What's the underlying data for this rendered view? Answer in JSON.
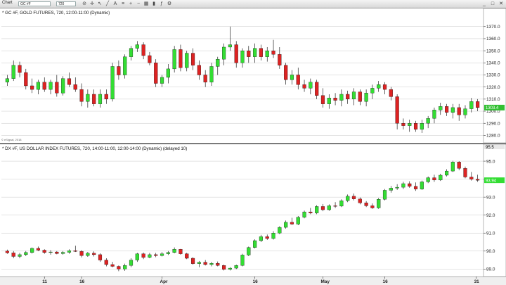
{
  "toolbar": {
    "app_label": "Chart",
    "symbol": "GC #F",
    "interval": "720"
  },
  "colors": {
    "up": "#33dd33",
    "down": "#dd2222",
    "wick": "#000000",
    "grid": "#c8c8c8",
    "last_gc": "#33c033",
    "last_dx": "#33dd33"
  },
  "chart_data": [
    {
      "type": "candlestick",
      "title": "* GC #F, GOLD FUTURES, 720, 12:00-11:00 (Dynamic)",
      "ylim": [
        1275,
        1378
      ],
      "yticks": [
        1280.0,
        1290.0,
        1300.0,
        1310.0,
        1320.0,
        1330.0,
        1340.0,
        1350.0,
        1360.0,
        1370.0
      ],
      "last_value": "1303.4",
      "credit": "© eSignal, 2018",
      "x_labels": [],
      "candles": [
        [
          1324,
          1330,
          1321,
          1327
        ],
        [
          1327,
          1342,
          1325,
          1338
        ],
        [
          1338,
          1341,
          1328,
          1332
        ],
        [
          1332,
          1335,
          1318,
          1321
        ],
        [
          1321,
          1327,
          1315,
          1318
        ],
        [
          1318,
          1326,
          1314,
          1324
        ],
        [
          1324,
          1328,
          1316,
          1318
        ],
        [
          1318,
          1326,
          1314,
          1324
        ],
        [
          1324,
          1330,
          1312,
          1315
        ],
        [
          1315,
          1329,
          1313,
          1327
        ],
        [
          1327,
          1332,
          1320,
          1322
        ],
        [
          1322,
          1328,
          1316,
          1318
        ],
        [
          1318,
          1323,
          1304,
          1308
        ],
        [
          1308,
          1318,
          1303,
          1314
        ],
        [
          1314,
          1318,
          1304,
          1306
        ],
        [
          1306,
          1318,
          1303,
          1314
        ],
        [
          1314,
          1318,
          1306,
          1310
        ],
        [
          1310,
          1340,
          1308,
          1337
        ],
        [
          1337,
          1342,
          1326,
          1330
        ],
        [
          1330,
          1347,
          1327,
          1345
        ],
        [
          1345,
          1354,
          1342,
          1352
        ],
        [
          1352,
          1358,
          1349,
          1355
        ],
        [
          1355,
          1357,
          1343,
          1346
        ],
        [
          1346,
          1349,
          1338,
          1340
        ],
        [
          1340,
          1343,
          1320,
          1323
        ],
        [
          1323,
          1330,
          1320,
          1328
        ],
        [
          1328,
          1339,
          1323,
          1335
        ],
        [
          1335,
          1354,
          1332,
          1351
        ],
        [
          1351,
          1355,
          1333,
          1336
        ],
        [
          1336,
          1350,
          1333,
          1348
        ],
        [
          1348,
          1352,
          1334,
          1338
        ],
        [
          1338,
          1342,
          1326,
          1330
        ],
        [
          1330,
          1334,
          1320,
          1324
        ],
        [
          1324,
          1340,
          1321,
          1337
        ],
        [
          1337,
          1345,
          1330,
          1343
        ],
        [
          1343,
          1356,
          1338,
          1353
        ],
        [
          1353,
          1370,
          1350,
          1355
        ],
        [
          1355,
          1358,
          1336,
          1340
        ],
        [
          1340,
          1352,
          1336,
          1350
        ],
        [
          1350,
          1354,
          1340,
          1345
        ],
        [
          1345,
          1356,
          1340,
          1352
        ],
        [
          1352,
          1355,
          1342,
          1345
        ],
        [
          1345,
          1353,
          1341,
          1350
        ],
        [
          1350,
          1359,
          1344,
          1347
        ],
        [
          1347,
          1353,
          1335,
          1338
        ],
        [
          1338,
          1340,
          1322,
          1326
        ],
        [
          1326,
          1334,
          1322,
          1330
        ],
        [
          1330,
          1336,
          1318,
          1322
        ],
        [
          1322,
          1326,
          1316,
          1319
        ],
        [
          1319,
          1327,
          1314,
          1324
        ],
        [
          1324,
          1326,
          1310,
          1313
        ],
        [
          1313,
          1319,
          1303,
          1306
        ],
        [
          1306,
          1314,
          1302,
          1311
        ],
        [
          1311,
          1315,
          1305,
          1309
        ],
        [
          1309,
          1318,
          1304,
          1314
        ],
        [
          1314,
          1317,
          1306,
          1310
        ],
        [
          1310,
          1319,
          1305,
          1316
        ],
        [
          1316,
          1318,
          1305,
          1308
        ],
        [
          1308,
          1318,
          1304,
          1315
        ],
        [
          1315,
          1322,
          1310,
          1319
        ],
        [
          1319,
          1325,
          1316,
          1322
        ],
        [
          1322,
          1324,
          1314,
          1318
        ],
        [
          1318,
          1320,
          1309,
          1312
        ],
        [
          1312,
          1314,
          1285,
          1290
        ],
        [
          1290,
          1294,
          1285,
          1288
        ],
        [
          1288,
          1293,
          1283,
          1290
        ],
        [
          1290,
          1292,
          1283,
          1285
        ],
        [
          1285,
          1293,
          1282,
          1290
        ],
        [
          1290,
          1296,
          1286,
          1294
        ],
        [
          1294,
          1303,
          1290,
          1301
        ],
        [
          1301,
          1307,
          1297,
          1304
        ],
        [
          1304,
          1306,
          1296,
          1299
        ],
        [
          1299,
          1306,
          1294,
          1303
        ],
        [
          1303,
          1306,
          1292,
          1297
        ],
        [
          1297,
          1305,
          1294,
          1302
        ],
        [
          1302,
          1311,
          1299,
          1308
        ],
        [
          1308,
          1310,
          1300,
          1303
        ]
      ]
    },
    {
      "type": "candlestick",
      "title": "* DX #F, US DOLLAR INDEX FUTURES, 720, 14:00-11:00, 12:00-14:00 (Dynamic) (delayed 10)",
      "ylim": [
        88.7,
        95.55
      ],
      "yticks": [
        89.0,
        90.0,
        91.0,
        92.0,
        93.0,
        94.0,
        95.0
      ],
      "last_value": "93.94",
      "top_value": "95.5",
      "x_labels": [
        "11",
        "16",
        "Apr",
        "16",
        "May",
        "16",
        "31"
      ],
      "candles": [
        [
          90.0,
          90.08,
          89.85,
          89.9
        ],
        [
          89.9,
          90.0,
          89.6,
          89.7
        ],
        [
          89.7,
          89.9,
          89.6,
          89.8
        ],
        [
          89.8,
          90.0,
          89.72,
          89.92
        ],
        [
          89.92,
          90.2,
          89.86,
          90.15
        ],
        [
          90.15,
          90.25,
          90.0,
          90.05
        ],
        [
          90.05,
          90.1,
          89.85,
          89.92
        ],
        [
          89.92,
          90.05,
          89.8,
          89.95
        ],
        [
          89.95,
          90.0,
          89.82,
          89.86
        ],
        [
          89.86,
          90.0,
          89.8,
          89.93
        ],
        [
          89.93,
          90.1,
          89.85,
          90.02
        ],
        [
          90.02,
          90.3,
          89.95,
          89.98
        ],
        [
          89.98,
          90.05,
          89.65,
          89.75
        ],
        [
          89.75,
          89.95,
          89.68,
          89.88
        ],
        [
          89.88,
          89.98,
          89.7,
          89.8
        ],
        [
          89.8,
          89.88,
          89.4,
          89.5
        ],
        [
          89.5,
          89.6,
          89.15,
          89.25
        ],
        [
          89.25,
          89.4,
          89.1,
          89.15
        ],
        [
          89.15,
          89.2,
          88.88,
          89.0
        ],
        [
          89.0,
          89.3,
          88.9,
          89.2
        ],
        [
          89.2,
          89.6,
          89.1,
          89.5
        ],
        [
          89.5,
          89.9,
          89.4,
          89.85
        ],
        [
          89.85,
          89.92,
          89.55,
          89.65
        ],
        [
          89.65,
          89.9,
          89.6,
          89.8
        ],
        [
          89.8,
          89.9,
          89.66,
          89.75
        ],
        [
          89.75,
          89.95,
          89.7,
          89.85
        ],
        [
          89.85,
          90.0,
          89.78,
          89.92
        ],
        [
          89.92,
          90.2,
          89.88,
          90.1
        ],
        [
          90.1,
          90.12,
          89.8,
          89.85
        ],
        [
          89.85,
          89.9,
          89.55,
          89.6
        ],
        [
          89.6,
          89.66,
          89.25,
          89.3
        ],
        [
          89.3,
          89.45,
          89.1,
          89.38
        ],
        [
          89.38,
          89.5,
          89.2,
          89.25
        ],
        [
          89.25,
          89.4,
          89.15,
          89.32
        ],
        [
          89.32,
          89.42,
          89.15,
          89.2
        ],
        [
          89.2,
          89.25,
          88.92,
          88.98
        ],
        [
          88.98,
          89.1,
          88.92,
          89.05
        ],
        [
          89.05,
          89.25,
          89.0,
          89.2
        ],
        [
          89.2,
          89.85,
          89.15,
          89.78
        ],
        [
          89.78,
          90.25,
          89.72,
          90.2
        ],
        [
          90.2,
          90.65,
          90.15,
          90.58
        ],
        [
          90.58,
          90.9,
          90.5,
          90.8
        ],
        [
          90.8,
          90.92,
          90.62,
          90.7
        ],
        [
          90.7,
          91.1,
          90.64,
          91.0
        ],
        [
          91.0,
          91.38,
          90.95,
          91.32
        ],
        [
          91.32,
          91.7,
          91.25,
          91.6
        ],
        [
          91.6,
          91.85,
          91.45,
          91.5
        ],
        [
          91.5,
          91.95,
          91.44,
          91.88
        ],
        [
          91.88,
          92.25,
          91.82,
          92.18
        ],
        [
          92.18,
          92.4,
          92.05,
          92.12
        ],
        [
          92.12,
          92.55,
          92.05,
          92.48
        ],
        [
          92.48,
          92.62,
          92.22,
          92.3
        ],
        [
          92.3,
          92.6,
          92.24,
          92.52
        ],
        [
          92.52,
          92.72,
          92.4,
          92.5
        ],
        [
          92.5,
          92.88,
          92.45,
          92.8
        ],
        [
          92.8,
          93.15,
          92.72,
          93.05
        ],
        [
          93.05,
          93.2,
          92.82,
          92.9
        ],
        [
          92.9,
          92.98,
          92.6,
          92.68
        ],
        [
          92.68,
          92.78,
          92.45,
          92.52
        ],
        [
          92.52,
          92.65,
          92.35,
          92.4
        ],
        [
          92.4,
          92.95,
          92.35,
          92.88
        ],
        [
          92.88,
          93.45,
          92.82,
          93.38
        ],
        [
          93.38,
          93.62,
          93.25,
          93.5
        ],
        [
          93.5,
          93.72,
          93.4,
          93.55
        ],
        [
          93.55,
          93.85,
          93.45,
          93.75
        ],
        [
          93.75,
          93.88,
          93.52,
          93.6
        ],
        [
          93.6,
          93.82,
          93.35,
          93.45
        ],
        [
          93.45,
          93.92,
          93.4,
          93.85
        ],
        [
          93.85,
          94.15,
          93.78,
          94.08
        ],
        [
          94.08,
          94.25,
          93.85,
          93.95
        ],
        [
          93.95,
          94.3,
          93.9,
          94.22
        ],
        [
          94.22,
          94.55,
          94.15,
          94.45
        ],
        [
          94.45,
          95.02,
          94.4,
          94.95
        ],
        [
          94.95,
          95.0,
          94.5,
          94.6
        ],
        [
          94.6,
          94.7,
          94.05,
          94.12
        ],
        [
          94.12,
          94.4,
          93.92,
          94.0
        ],
        [
          94.0,
          94.25,
          93.85,
          93.94
        ]
      ]
    }
  ]
}
